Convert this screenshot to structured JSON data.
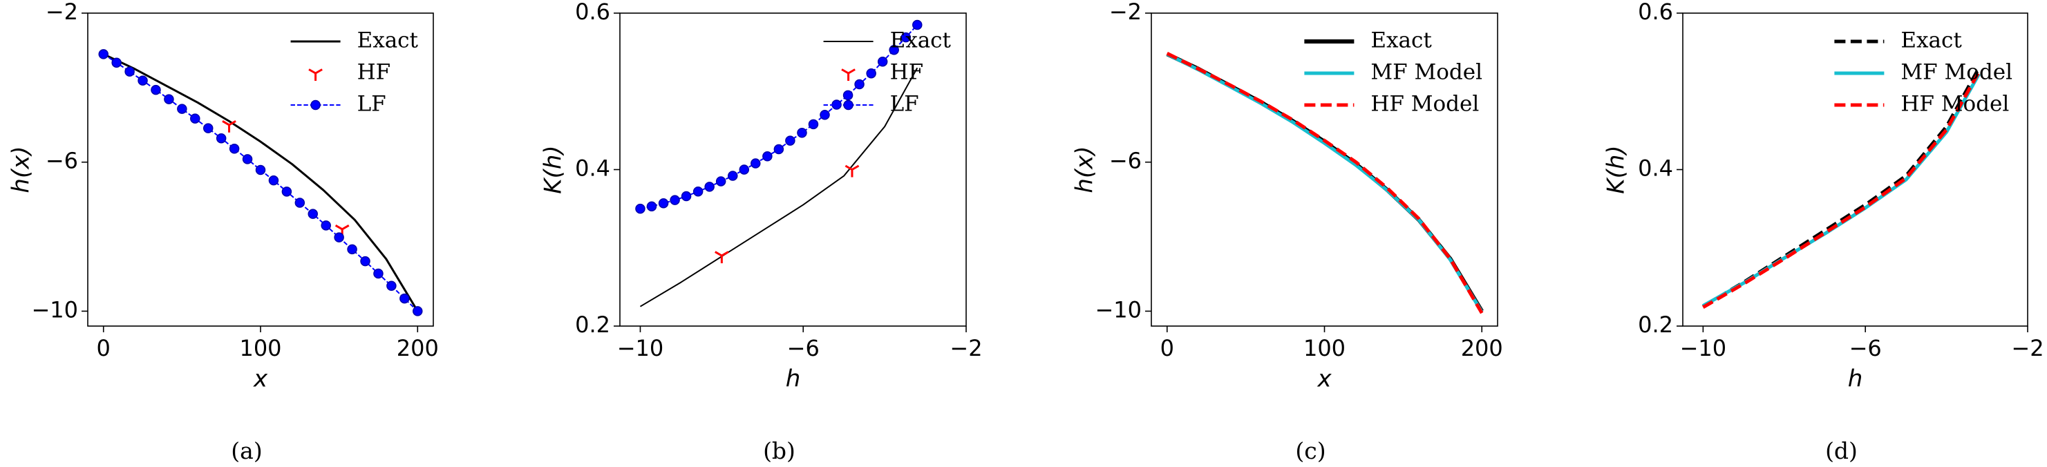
{
  "chart_data": [
    {
      "type": "line",
      "caption": "(a)",
      "x_label": "x",
      "y_label": "h(x)",
      "xlim": [
        -10,
        210
      ],
      "ylim": [
        -10.4,
        -2
      ],
      "xticks": [
        0,
        100,
        200
      ],
      "yticks": [
        {
          "value": -10,
          "label": "−10"
        },
        {
          "value": -6,
          "label": "−6"
        },
        {
          "value": -2,
          "label": "−2"
        }
      ],
      "legend": "upper right",
      "series": [
        {
          "name": "Exact",
          "color": "#000000",
          "line_style": "solid",
          "line_width": 3,
          "marker": "none",
          "x": [
            0,
            20,
            40,
            60,
            80,
            100,
            120,
            140,
            160,
            180,
            200
          ],
          "values": [
            -3.1,
            -3.5,
            -3.95,
            -4.4,
            -4.9,
            -5.45,
            -6.05,
            -6.75,
            -7.55,
            -8.6,
            -10.0
          ]
        },
        {
          "name": "HF",
          "color": "#ff0000",
          "line_style": "none",
          "line_width": 3,
          "marker": "tri_down",
          "x": [
            80,
            152
          ],
          "values": [
            -5.0,
            -7.8
          ]
        },
        {
          "name": "LF",
          "color": "#0000ff",
          "line_style": "dashed",
          "line_width": 2,
          "marker": "circle",
          "x": [
            0,
            8.33,
            16.67,
            25,
            33.33,
            41.67,
            50,
            58.33,
            66.67,
            75,
            83.33,
            91.67,
            100,
            108.33,
            116.67,
            125,
            133.33,
            141.67,
            150,
            158.33,
            166.67,
            175,
            183.33,
            191.67,
            200
          ],
          "values": [
            -3.1,
            -3.33,
            -3.57,
            -3.81,
            -4.06,
            -4.31,
            -4.57,
            -4.83,
            -5.09,
            -5.36,
            -5.64,
            -5.92,
            -6.21,
            -6.49,
            -6.79,
            -7.09,
            -7.39,
            -7.7,
            -8.02,
            -8.34,
            -8.66,
            -8.99,
            -9.32,
            -9.66,
            -10.0
          ]
        }
      ]
    },
    {
      "type": "line",
      "caption": "(b)",
      "x_label": "h",
      "y_label": "K(h)",
      "xlim": [
        -10.5,
        -2
      ],
      "ylim": [
        0.2,
        0.6
      ],
      "xticks": [
        {
          "value": -10,
          "label": "−10"
        },
        {
          "value": -6,
          "label": "−6"
        },
        {
          "value": -2,
          "label": "−2"
        }
      ],
      "yticks": [
        0.2,
        0.4,
        0.6
      ],
      "legend": "upper right",
      "series": [
        {
          "name": "Exact",
          "color": "#000000",
          "line_style": "solid",
          "line_width": 2,
          "marker": "none",
          "x": [
            -10,
            -9,
            -8,
            -7,
            -6,
            -5,
            -4,
            -3.2
          ],
          "values": [
            0.225,
            0.256,
            0.289,
            0.322,
            0.355,
            0.392,
            0.455,
            0.53
          ]
        },
        {
          "name": "HF",
          "color": "#ff0000",
          "line_style": "none",
          "line_width": 3,
          "marker": "tri_down",
          "x": [
            -8,
            -4.8
          ],
          "values": [
            0.29,
            0.4
          ]
        },
        {
          "name": "LF",
          "color": "#0000ff",
          "line_style": "dashed",
          "line_width": 2,
          "marker": "circle",
          "x": [
            -10,
            -9.72,
            -9.43,
            -9.15,
            -8.87,
            -8.58,
            -8.3,
            -8.02,
            -7.73,
            -7.45,
            -7.17,
            -6.88,
            -6.6,
            -6.32,
            -6.03,
            -5.75,
            -5.47,
            -5.18,
            -4.9,
            -4.62,
            -4.33,
            -4.05,
            -3.77,
            -3.48,
            -3.2
          ],
          "values": [
            0.35,
            0.353,
            0.357,
            0.361,
            0.366,
            0.372,
            0.378,
            0.385,
            0.392,
            0.4,
            0.408,
            0.417,
            0.426,
            0.437,
            0.447,
            0.458,
            0.47,
            0.483,
            0.495,
            0.509,
            0.523,
            0.538,
            0.553,
            0.569,
            0.585
          ]
        }
      ]
    },
    {
      "type": "line",
      "caption": "(c)",
      "x_label": "x",
      "y_label": "h(x)",
      "xlim": [
        -10,
        210
      ],
      "ylim": [
        -10.4,
        -2
      ],
      "xticks": [
        0,
        100,
        200
      ],
      "yticks": [
        {
          "value": -10,
          "label": "−10"
        },
        {
          "value": -6,
          "label": "−6"
        },
        {
          "value": -2,
          "label": "−2"
        }
      ],
      "legend": "upper right",
      "series": [
        {
          "name": "Exact",
          "color": "#000000",
          "line_style": "solid",
          "line_width": 6,
          "marker": "none",
          "x": [
            0,
            20,
            40,
            60,
            80,
            100,
            120,
            140,
            160,
            180,
            200
          ],
          "values": [
            -3.1,
            -3.5,
            -3.95,
            -4.4,
            -4.9,
            -5.45,
            -6.05,
            -6.75,
            -7.55,
            -8.6,
            -10.0
          ]
        },
        {
          "name": "MF Model",
          "color": "#17becf",
          "line_style": "solid",
          "line_width": 5,
          "marker": "none",
          "x": [
            0,
            20,
            40,
            60,
            80,
            100,
            120,
            140,
            160,
            180,
            200
          ],
          "values": [
            -3.1,
            -3.52,
            -3.97,
            -4.43,
            -4.93,
            -5.49,
            -6.08,
            -6.76,
            -7.55,
            -8.62,
            -10.02
          ]
        },
        {
          "name": "HF Model",
          "color": "#ff0000",
          "line_style": "dashed",
          "line_width": 5,
          "marker": "none",
          "x": [
            0,
            20,
            40,
            60,
            80,
            100,
            120,
            140,
            160,
            180,
            200
          ],
          "values": [
            -3.08,
            -3.5,
            -3.93,
            -4.38,
            -4.87,
            -5.42,
            -6.0,
            -6.7,
            -7.52,
            -8.6,
            -10.05
          ]
        }
      ]
    },
    {
      "type": "line",
      "caption": "(d)",
      "x_label": "h",
      "y_label": "K(h)",
      "xlim": [
        -10.5,
        -2
      ],
      "ylim": [
        0.2,
        0.6
      ],
      "xticks": [
        {
          "value": -10,
          "label": "−10"
        },
        {
          "value": -6,
          "label": "−6"
        },
        {
          "value": -2,
          "label": "−2"
        }
      ],
      "yticks": [
        0.2,
        0.4,
        0.6
      ],
      "legend": "upper right",
      "series": [
        {
          "name": "Exact",
          "color": "#000000",
          "line_style": "dashed",
          "line_width": 5,
          "marker": "none",
          "x": [
            -10,
            -9,
            -8,
            -7,
            -6,
            -5,
            -4,
            -3.2
          ],
          "values": [
            0.225,
            0.256,
            0.289,
            0.322,
            0.355,
            0.392,
            0.455,
            0.53
          ]
        },
        {
          "name": "MF Model",
          "color": "#17becf",
          "line_style": "solid",
          "line_width": 5,
          "marker": "none",
          "x": [
            -10,
            -9,
            -8,
            -7,
            -6,
            -5,
            -4,
            -3.2
          ],
          "values": [
            0.226,
            0.255,
            0.287,
            0.318,
            0.351,
            0.387,
            0.448,
            0.522
          ]
        },
        {
          "name": "HF Model",
          "color": "#ff0000",
          "line_style": "dashed",
          "line_width": 5,
          "marker": "none",
          "x": [
            -10,
            -9,
            -8,
            -7,
            -6,
            -5,
            -4,
            -3.2
          ],
          "values": [
            0.224,
            0.254,
            0.286,
            0.319,
            0.352,
            0.389,
            0.451,
            0.525
          ]
        }
      ]
    }
  ]
}
